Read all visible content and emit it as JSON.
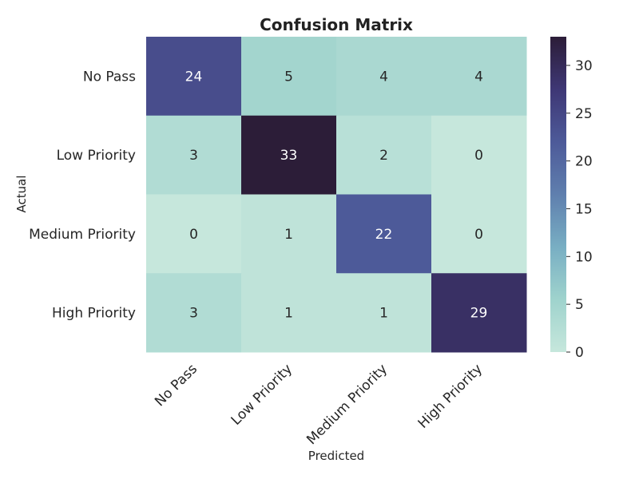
{
  "chart_data": {
    "type": "heatmap",
    "title": "Confusion Matrix",
    "xlabel": "Predicted",
    "ylabel": "Actual",
    "x_categories": [
      "No Pass",
      "Low Priority",
      "Medium Priority",
      "High Priority"
    ],
    "y_categories": [
      "No Pass",
      "Low Priority",
      "Medium Priority",
      "High Priority"
    ],
    "values": [
      [
        24,
        5,
        4,
        4
      ],
      [
        3,
        33,
        2,
        0
      ],
      [
        0,
        1,
        22,
        0
      ],
      [
        3,
        1,
        1,
        29
      ]
    ],
    "colorbar": {
      "range": [
        0,
        33
      ],
      "ticks": [
        0,
        5,
        10,
        15,
        20,
        25,
        30
      ],
      "colors": [
        "#c6e7dc",
        "#9fd3cd",
        "#78aec3",
        "#5f7fae",
        "#4d5a99",
        "#3e3775",
        "#2c1d38"
      ]
    },
    "grid": false,
    "legend": "colorbar-right"
  }
}
